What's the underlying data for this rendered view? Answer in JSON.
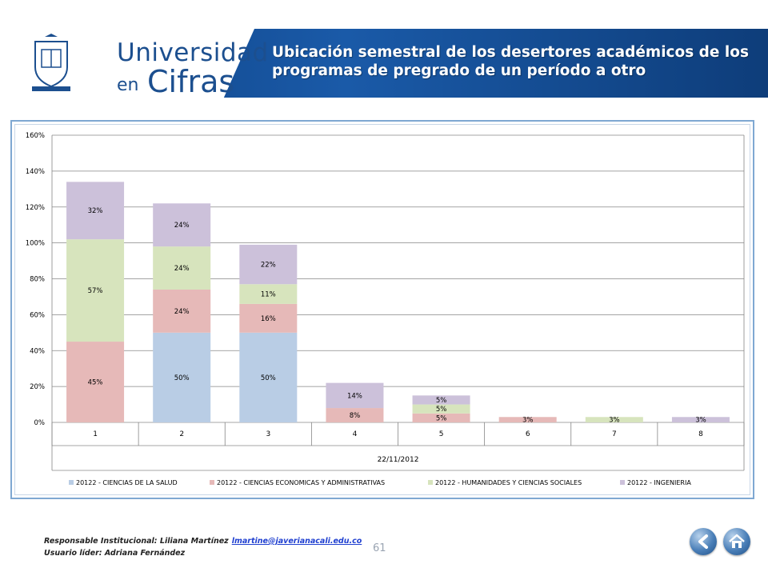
{
  "header": {
    "brand_line1": "Universidad",
    "brand_en": "en",
    "brand_cifras": "Cifras",
    "title": "Ubicación semestral de los desertores académicos de los programas de pregrado de un período a otro"
  },
  "chart_data": {
    "type": "bar",
    "stacked": true,
    "categories": [
      "1",
      "2",
      "3",
      "4",
      "5",
      "6",
      "7",
      "8"
    ],
    "xlabel": "22/11/2012",
    "ylabel": "",
    "ylim": [
      0,
      160
    ],
    "yticks": [
      "0%",
      "20%",
      "40%",
      "60%",
      "80%",
      "100%",
      "120%",
      "140%",
      "160%"
    ],
    "grid": true,
    "legend_position": "bottom",
    "series": [
      {
        "name": "20122 - CIENCIAS DE LA SALUD",
        "color": "#b9cde5",
        "values": [
          0,
          50,
          50,
          0,
          0,
          0,
          0,
          0
        ],
        "labels": [
          "",
          "50%",
          "50%",
          "",
          "",
          "",
          "",
          ""
        ]
      },
      {
        "name": "20122 - CIENCIAS ECONOMICAS Y ADMINISTRATIVAS",
        "color": "#e6b9b8",
        "values": [
          45,
          24,
          16,
          8,
          5,
          3,
          0,
          0
        ],
        "labels": [
          "45%",
          "24%",
          "16%",
          "8%",
          "5%",
          "3%",
          "",
          ""
        ]
      },
      {
        "name": "20122 - HUMANIDADES Y CIENCIAS SOCIALES",
        "color": "#d7e4bd",
        "values": [
          57,
          24,
          11,
          0,
          5,
          0,
          3,
          0
        ],
        "labels": [
          "57%",
          "24%",
          "11%",
          "",
          "5%",
          "",
          "3%",
          ""
        ]
      },
      {
        "name": "20122 - INGENIERIA",
        "color": "#ccc1da",
        "values": [
          32,
          24,
          22,
          14,
          5,
          0,
          0,
          3
        ],
        "labels": [
          "32%",
          "24%",
          "22%",
          "14%",
          "5%",
          "",
          "",
          "3%"
        ]
      }
    ]
  },
  "footer": {
    "responsable_label": "Responsable Institucional: Liliana Martínez",
    "email": "lmartine@javerianacali.edu.co",
    "usuario": "Usuario líder: Adriana Fernández",
    "page_number": "61"
  }
}
